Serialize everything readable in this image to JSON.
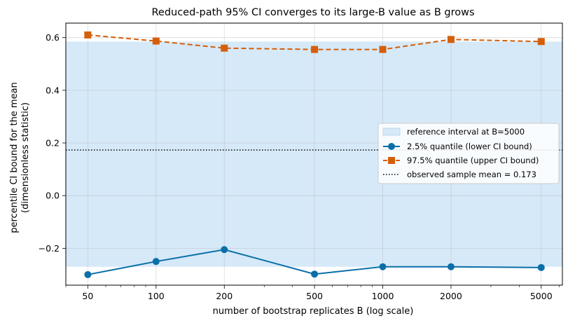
{
  "chart_data": {
    "type": "line",
    "title": "Reduced-path 95% CI converges to its large-B value as B grows",
    "xlabel": "number of bootstrap replicates B (log scale)",
    "ylabel_line1": "percentile CI bound for the mean",
    "ylabel_line2": "(dimensionless statistic)",
    "x_scale": "log",
    "x": [
      50,
      100,
      200,
      500,
      1000,
      2000,
      5000
    ],
    "x_tick_labels": [
      "50",
      "100",
      "200",
      "500",
      "1000",
      "2000",
      "5000"
    ],
    "xlim": [
      40,
      6200
    ],
    "ylim": [
      -0.34,
      0.655
    ],
    "y_ticks": [
      -0.2,
      0.0,
      0.2,
      0.4,
      0.6
    ],
    "y_tick_labels": [
      "−0.2",
      "0.0",
      "0.2",
      "0.4",
      "0.6"
    ],
    "grid": true,
    "legend_position": "center-right",
    "reference_band": {
      "label": "reference interval at B=5000",
      "low": -0.27,
      "high": 0.585,
      "color": "#d6e9f8"
    },
    "reference_line": {
      "label": "observed sample mean = 0.173",
      "value": 0.173,
      "color": "#000000"
    },
    "series": [
      {
        "name": "2.5% quantile (lower CI bound)",
        "values": [
          -0.3,
          -0.25,
          -0.205,
          -0.298,
          -0.27,
          -0.27,
          -0.273
        ],
        "color": "#0a6fa8",
        "marker": "circle",
        "dash": "solid"
      },
      {
        "name": "97.5% quantile (upper CI bound)",
        "values": [
          0.61,
          0.587,
          0.56,
          0.555,
          0.555,
          0.593,
          0.585
        ],
        "color": "#d45f0a",
        "marker": "square",
        "dash": "dashed"
      }
    ]
  }
}
